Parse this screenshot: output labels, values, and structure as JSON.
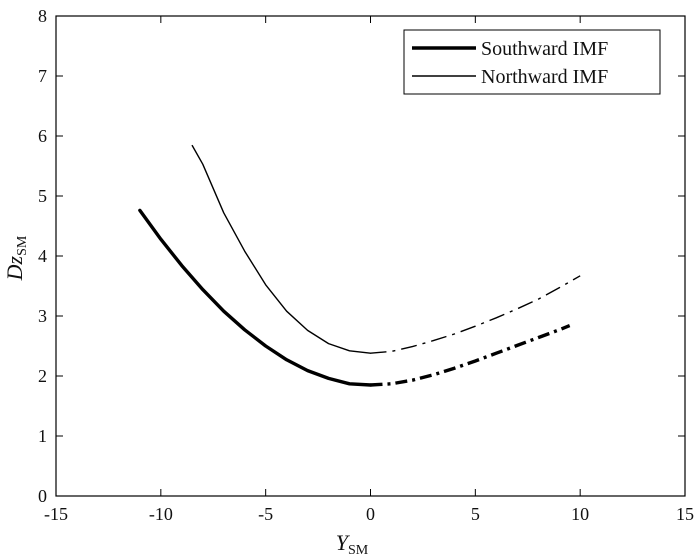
{
  "chart_data": {
    "type": "line",
    "xlabel": "Y",
    "xlabel_sub": "SM",
    "ylabel": "Dz",
    "ylabel_sub": "SM",
    "xlim": [
      -15,
      15
    ],
    "ylim": [
      0,
      8
    ],
    "xticks": [
      -15,
      -10,
      -5,
      0,
      5,
      10,
      15
    ],
    "yticks": [
      0,
      1,
      2,
      3,
      4,
      5,
      6,
      7,
      8
    ],
    "grid": false,
    "legend_position": "top-right",
    "series": [
      {
        "name": "Southward IMF",
        "color": "#000000",
        "line_weight": "thick",
        "solid_part": {
          "x": [
            -11.0,
            -10.0,
            -9.0,
            -8.0,
            -7.0,
            -6.0,
            -5.0,
            -4.0,
            -3.0,
            -2.0,
            -1.0,
            0.0
          ],
          "y": [
            4.76,
            4.28,
            3.84,
            3.44,
            3.08,
            2.77,
            2.5,
            2.27,
            2.09,
            1.96,
            1.87,
            1.85
          ]
        },
        "dashdot_part": {
          "x": [
            0.0,
            1.0,
            2.0,
            3.0,
            4.0,
            5.0,
            6.0,
            7.0,
            8.0,
            9.0,
            9.5
          ],
          "y": [
            1.85,
            1.87,
            1.93,
            2.02,
            2.13,
            2.25,
            2.38,
            2.51,
            2.64,
            2.77,
            2.84
          ]
        }
      },
      {
        "name": "Northward IMF",
        "color": "#000000",
        "line_weight": "thin",
        "solid_part": {
          "x": [
            -8.5,
            -8.0,
            -7.0,
            -6.0,
            -5.0,
            -4.0,
            -3.0,
            -2.0,
            -1.0,
            0.0
          ],
          "y": [
            5.84,
            5.53,
            4.72,
            4.08,
            3.52,
            3.08,
            2.76,
            2.54,
            2.42,
            2.38
          ]
        },
        "dashdot_part": {
          "x": [
            0.0,
            1.0,
            2.0,
            3.0,
            4.0,
            5.0,
            6.0,
            7.0,
            8.0,
            9.0,
            10.0
          ],
          "y": [
            2.38,
            2.41,
            2.49,
            2.59,
            2.7,
            2.83,
            2.97,
            3.12,
            3.28,
            3.47,
            3.67
          ]
        }
      }
    ]
  }
}
